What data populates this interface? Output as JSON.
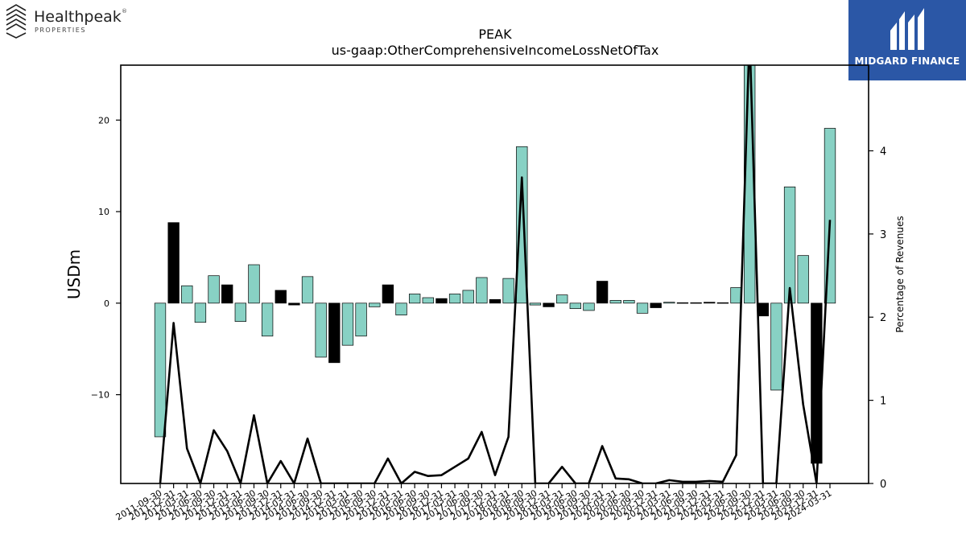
{
  "branding": {
    "left_logo_name": "Healthpeak",
    "left_logo_sub": "PROPERTIES",
    "left_logo_mark": "®",
    "right_logo_name": "MIDGARD FINANCE",
    "right_logo_bg": "#2b57a6"
  },
  "chart_data": {
    "type": "bar",
    "title": "PEAK",
    "subtitle": "us-gaap:OtherComprehensiveIncomeLossNetOfTax",
    "ylabel": "USDm",
    "y2label": "Percentage of Revenues",
    "ylim": [
      -19.7,
      26
    ],
    "y2lim": [
      0,
      5.03
    ],
    "yticks": [
      -10,
      0,
      10,
      20
    ],
    "y2ticks": [
      0,
      1,
      2,
      3,
      4
    ],
    "colors": {
      "teal": "#88d1c4",
      "black": "#000000",
      "line": "#000000"
    },
    "categories": [
      "2011-09-30",
      "2011-12-31",
      "2012-03-31",
      "2012-06-30",
      "2012-09-30",
      "2012-12-31",
      "2013-03-31",
      "2013-06-30",
      "2013-09-30",
      "2013-12-31",
      "2014-03-31",
      "2014-06-30",
      "2014-09-30",
      "2014-12-31",
      "2015-03-31",
      "2015-06-30",
      "2015-09-30",
      "2015-12-31",
      "2016-03-31",
      "2016-06-30",
      "2016-09-30",
      "2016-12-31",
      "2017-03-31",
      "2017-06-30",
      "2017-09-30",
      "2017-12-31",
      "2018-03-31",
      "2018-06-30",
      "2018-09-30",
      "2018-12-31",
      "2019-03-31",
      "2019-06-30",
      "2019-09-30",
      "2019-12-31",
      "2020-03-31",
      "2020-06-30",
      "2020-09-30",
      "2020-12-31",
      "2021-03-31",
      "2021-06-30",
      "2021-09-30",
      "2021-12-31",
      "2022-03-31",
      "2022-06-30",
      "2022-09-30",
      "2022-12-31",
      "2023-03-31",
      "2023-06-30",
      "2023-09-30",
      "2023-12-31",
      "2024-03-31"
    ],
    "series": [
      {
        "kind": "bar",
        "values": [
          -14.6,
          8.8,
          1.9,
          -2.1,
          3.0,
          2.0,
          -2.0,
          4.2,
          -3.6,
          1.4,
          -0.2,
          2.9,
          -5.9,
          -6.5,
          -4.6,
          -3.6,
          -0.4,
          2.0,
          -1.3,
          1.0,
          0.6,
          0.5,
          1.0,
          1.4,
          2.8,
          0.4,
          2.7,
          17.1,
          -0.2,
          -0.4,
          0.9,
          -0.6,
          -0.8,
          2.4,
          0.3,
          0.3,
          -1.1,
          -0.5,
          0.1,
          0.05,
          0.05,
          0.1,
          0.05,
          1.7,
          26.5,
          -1.4,
          -9.5,
          12.7,
          5.2,
          -17.5,
          19.1
        ],
        "bar_colors": [
          "teal",
          "black",
          "teal",
          "teal",
          "teal",
          "black",
          "teal",
          "teal",
          "teal",
          "black",
          "black",
          "teal",
          "teal",
          "black",
          "teal",
          "teal",
          "teal",
          "black",
          "teal",
          "teal",
          "teal",
          "black",
          "teal",
          "teal",
          "teal",
          "black",
          "teal",
          "teal",
          "teal",
          "black",
          "teal",
          "teal",
          "teal",
          "black",
          "teal",
          "teal",
          "teal",
          "black",
          "teal",
          "black",
          "black",
          "black",
          "black",
          "teal",
          "teal",
          "black",
          "teal",
          "teal",
          "teal",
          "black",
          "teal"
        ]
      },
      {
        "kind": "line",
        "axis": "right",
        "values": [
          0,
          1.93,
          0.42,
          0,
          0.64,
          0.39,
          0,
          0.82,
          0,
          0.27,
          0,
          0.54,
          0,
          0,
          0,
          0,
          0,
          0.3,
          0,
          0.14,
          0.09,
          0.1,
          0.2,
          0.3,
          0.62,
          0.1,
          0.56,
          3.68,
          0,
          0,
          0.2,
          0,
          0,
          0.45,
          0.06,
          0.05,
          0,
          0,
          0.04,
          0.02,
          0.02,
          0.03,
          0.02,
          0.34,
          5.4,
          0,
          0,
          2.35,
          0.95,
          0,
          3.17
        ]
      }
    ]
  }
}
